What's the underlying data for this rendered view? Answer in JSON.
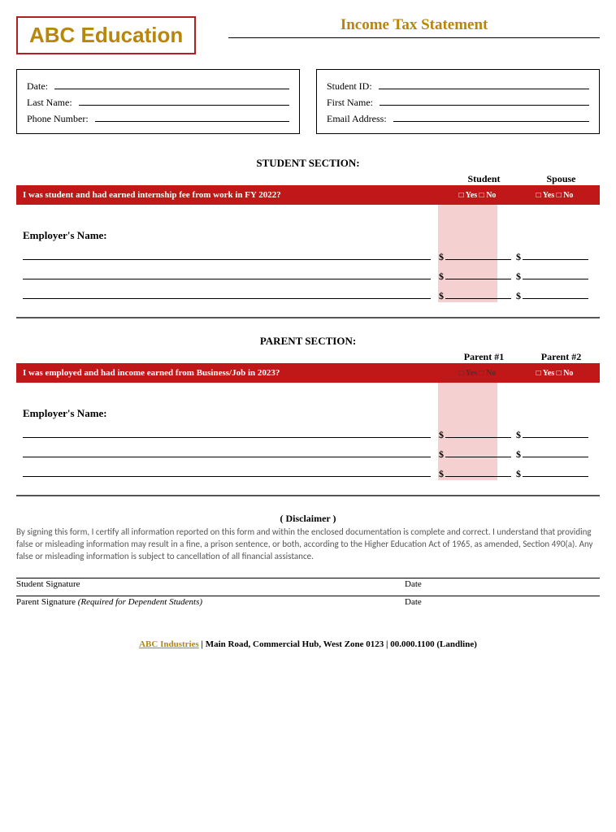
{
  "header": {
    "logo": "ABC Education",
    "title": "Income Tax Statement"
  },
  "leftBox": {
    "date": "Date:",
    "lastName": "Last Name:",
    "phone": "Phone Number:"
  },
  "rightBox": {
    "studentId": "Student ID:",
    "firstName": "First Name:",
    "email": "Email Address:"
  },
  "studentSection": {
    "heading": "STUDENT SECTION:",
    "col1": "Student",
    "col2": "Spouse",
    "question": "I was student and had earned internship fee from work in FY 2022?",
    "yesno1": "□ Yes  □ No",
    "yesno2": "□ Yes  □ No",
    "employerLabel": "Employer's Name:",
    "dollar": "$"
  },
  "parentSection": {
    "heading": "PARENT SECTION:",
    "col1": "Parent #1",
    "col2": "Parent #2",
    "question": "I was employed and had income earned from Business/Job in 2023?",
    "yesno1": "□ Yes    □ No",
    "yesno2": "□ Yes    □ No",
    "employerLabel": "Employer's Name:",
    "dollar": "$"
  },
  "disclaimer": {
    "heading": "( Disclaimer )",
    "text": "By signing this form, I certify all information reported on this form and within the enclosed documentation is complete and correct. I understand that providing false or misleading information may result in a fine, a prison sentence, or both, according to the Higher Education Act of 1965, as amended, Section 490(a). Any false or misleading information is subject to cancellation of all financial assistance."
  },
  "signatures": {
    "student": "Student Signature",
    "parent": "Parent Signature ",
    "parentNote": "(Required for Dependent Students)",
    "date": "Date"
  },
  "footer": {
    "company": "ABC Industries",
    "rest": " | Main Road, Commercial Hub, West Zone 0123 | 00.000.1100 (Landline)"
  },
  "colors": {
    "brand": "#b8860b",
    "redBar": "#c01818",
    "pink": "#f5d0d0",
    "borderRed": "#b02020"
  }
}
